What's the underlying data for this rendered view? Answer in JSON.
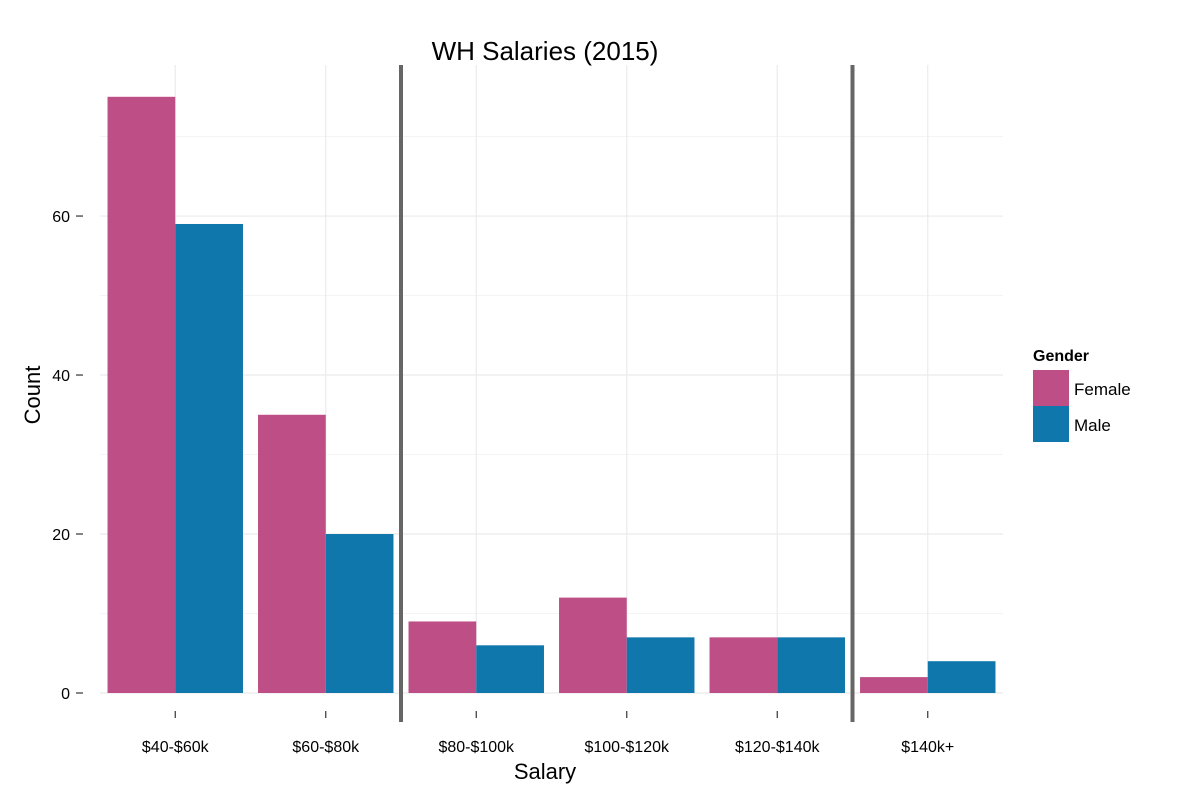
{
  "chart_data": {
    "type": "bar",
    "title": "WH Salaries (2015)",
    "xlabel": "Salary",
    "ylabel": "Count",
    "categories": [
      "$40-$60k",
      "$60-$80k",
      "$80-$100k",
      "$100-$120k",
      "$120-$140k",
      "$140k+"
    ],
    "series": [
      {
        "name": "Female",
        "values": [
          75,
          35,
          9,
          12,
          7,
          2
        ],
        "color": "#BE4F86"
      },
      {
        "name": "Male",
        "values": [
          59,
          20,
          6,
          7,
          7,
          4
        ],
        "color": "#0F77AB"
      }
    ],
    "ylim": [
      0,
      79
    ],
    "yticks": [
      0,
      20,
      40,
      60
    ],
    "grid": true,
    "legend": {
      "title": "Gender",
      "position": "right"
    },
    "divider_lines_after_categories": [
      "$60-$80k",
      "$120-$140k"
    ],
    "divider_color": "#666666"
  }
}
